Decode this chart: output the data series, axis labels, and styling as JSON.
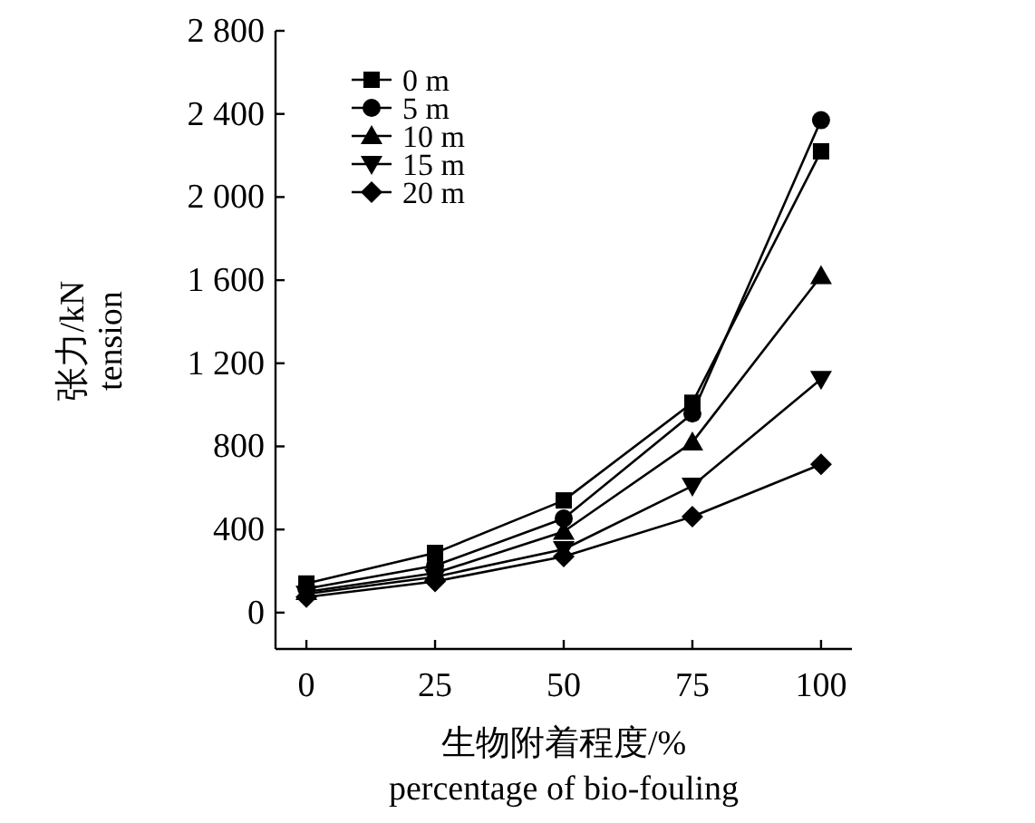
{
  "chart_data": {
    "type": "line",
    "xlabel": "生物附着程度/%\npercentage of bio-fouling",
    "ylabel": "张力/kN\ntension",
    "x": [
      0,
      25,
      50,
      75,
      100
    ],
    "series": [
      {
        "name": "0 m",
        "color": "#000000",
        "marker": "square",
        "values": [
          140,
          287,
          540,
          1010,
          2220
        ]
      },
      {
        "name": "5 m",
        "color": "#000000",
        "marker": "circle",
        "values": [
          115,
          226,
          453,
          958,
          2370
        ]
      },
      {
        "name": "10 m",
        "color": "#000000",
        "marker": "triangle",
        "values": [
          100,
          190,
          390,
          820,
          1620
        ]
      },
      {
        "name": "15 m",
        "color": "#000000",
        "marker": "triangle-down",
        "values": [
          90,
          172,
          305,
          610,
          1124
        ]
      },
      {
        "name": "20 m",
        "color": "#000000",
        "marker": "diamond",
        "values": [
          75,
          150,
          270,
          462,
          714
        ]
      }
    ],
    "xlim": [
      -6,
      106
    ],
    "ylim": [
      -175,
      2800
    ],
    "xticks": [
      0,
      25,
      50,
      75,
      100
    ],
    "yticks": [
      0,
      400,
      800,
      {
        "value": 1200,
        "label": "1 200"
      },
      {
        "value": 1600,
        "label": "1 600"
      },
      {
        "value": 2000,
        "label": "2 000"
      },
      {
        "value": 2400,
        "label": "2 400"
      },
      {
        "value": 2800,
        "label": "2 800"
      }
    ],
    "legend": "top left",
    "line_style": "solid"
  }
}
